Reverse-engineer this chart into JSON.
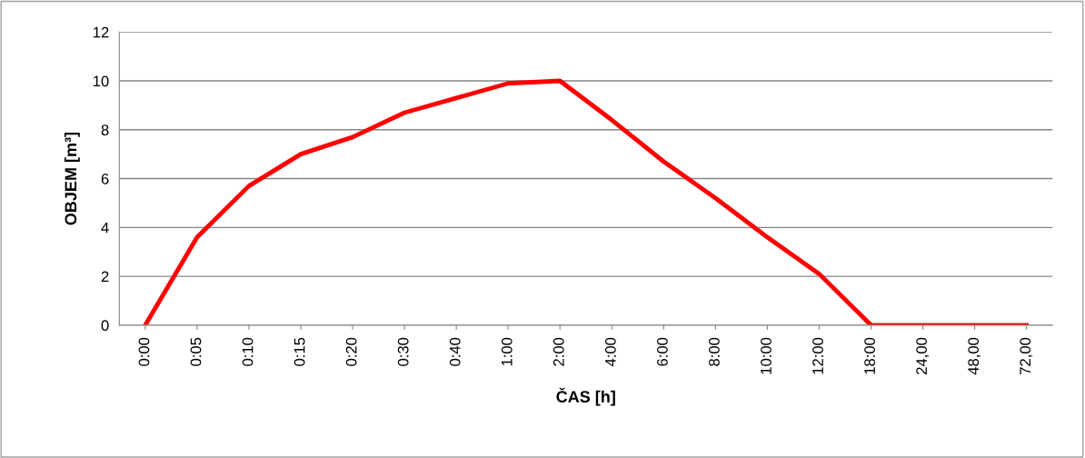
{
  "chart_data": {
    "type": "line",
    "xlabel": "ČAS [h]",
    "ylabel": "OBJEM [m³]",
    "categories": [
      "0:00",
      "0:05",
      "0:10",
      "0:15",
      "0:20",
      "0:30",
      "0:40",
      "1:00",
      "2:00",
      "4:00",
      "6:00",
      "8:00",
      "10:00",
      "12:00",
      "18:00",
      "24,00",
      "48,00",
      "72,00"
    ],
    "series": [
      {
        "color": "#ff0000",
        "values": [
          0,
          3.6,
          5.7,
          7.0,
          7.7,
          8.7,
          9.3,
          9.9,
          10.0,
          8.4,
          6.7,
          5.2,
          3.6,
          2.1,
          0,
          0,
          0,
          0
        ]
      }
    ],
    "ylim": [
      0,
      12
    ],
    "yticks": [
      0,
      2,
      4,
      6,
      8,
      10,
      12
    ],
    "grid": "y",
    "marker": "none",
    "line_style": "solid"
  }
}
